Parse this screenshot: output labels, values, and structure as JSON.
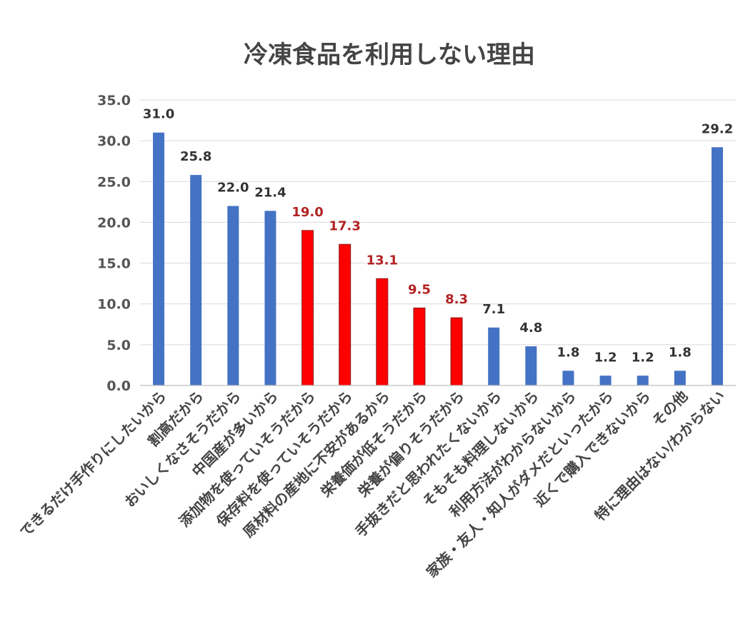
{
  "chart_data": {
    "type": "bar",
    "title": "冷凍食品を利用しない理由",
    "xlabel": "",
    "ylabel": "",
    "ylim": [
      0,
      35
    ],
    "yticks": [
      "0.0",
      "5.0",
      "10.0",
      "15.0",
      "20.0",
      "25.0",
      "30.0",
      "35.0"
    ],
    "grid": true,
    "categories": [
      "できるだけ手作りにしたいから",
      "割高だから",
      "おいしくなさそうだから",
      "中国産が多いから",
      "添加物を使っていそうだから",
      "保存料を使っていそうだから",
      "原材料の産地に不安があるから",
      "栄養価が低そうだから",
      "栄養が偏りそうだから",
      "手抜きだと思われたくないから",
      "そもそも料理しないから",
      "利用方法がわからないから",
      "家族・友人・知人がダメだといったから",
      "近くで購入できないから",
      "その他",
      "特に理由はない/わからない"
    ],
    "values": [
      31.0,
      25.8,
      22.0,
      21.4,
      19.0,
      17.3,
      13.1,
      9.5,
      8.3,
      7.1,
      4.8,
      1.8,
      1.2,
      1.2,
      1.8,
      29.2
    ],
    "value_labels": [
      "31.0",
      "25.8",
      "22.0",
      "21.4",
      "19.0",
      "17.3",
      "13.1",
      "9.5",
      "8.3",
      "7.1",
      "4.8",
      "1.8",
      "1.2",
      "1.2",
      "1.8",
      "29.2"
    ],
    "highlighted": [
      false,
      false,
      false,
      false,
      true,
      true,
      true,
      true,
      true,
      false,
      false,
      false,
      false,
      false,
      false,
      false
    ],
    "colors": {
      "default": "#4472c4",
      "highlight": "#ff0000",
      "highlight_label": "#b22222"
    }
  }
}
